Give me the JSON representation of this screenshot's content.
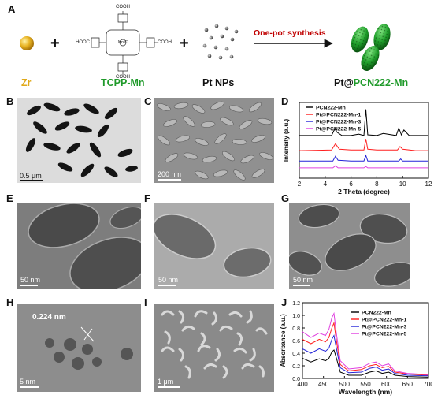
{
  "panel_labels": {
    "A": "A",
    "B": "B",
    "C": "C",
    "D": "D",
    "E": "E",
    "F": "F",
    "G": "G",
    "H": "H",
    "I": "I",
    "J": "J"
  },
  "scheme": {
    "zr_label": "Zr",
    "tcpp_label": "TCPP-Mn",
    "pt_label": "Pt NPs",
    "product_prefix": "Pt@",
    "product_suffix": "PCN222-Mn",
    "arrow_text": "One-pot synthesis",
    "plus": "+",
    "cooh": "COOH",
    "hooc": "HOOC",
    "mncl": "Mn Cl"
  },
  "scale_bars": {
    "B": "0.5 μm",
    "C": "200 nm",
    "E": "50 nm",
    "F": "50 nm",
    "G": "50 nm",
    "H": "5 nm",
    "I": "1 μm"
  },
  "hrtem": {
    "lattice_spacing": "0.224 nm"
  },
  "colors": {
    "zr": "#e0a91a",
    "green": "#1f9a2a",
    "arrow_red": "#c00000",
    "series": [
      "#000000",
      "#ff2020",
      "#2424d8",
      "#e040e0"
    ]
  },
  "chart_data": [
    {
      "type": "line",
      "panel": "D",
      "xlabel": "2 Theta (degree)",
      "ylabel": "Intensity (a.u.)",
      "xlim": [
        2,
        12
      ],
      "xticks": [
        2,
        4,
        6,
        8,
        10,
        12
      ],
      "legend_placement": "top-left",
      "series": [
        {
          "name": "PCN222-Mn",
          "color": "#000000",
          "x": [
            2,
            4.5,
            4.75,
            4.9,
            5.3,
            6.0,
            6.6,
            7.0,
            7.15,
            7.3,
            8.0,
            8.5,
            9.5,
            9.7,
            9.9,
            10.1,
            10.5,
            11,
            12
          ],
          "y": [
            0.62,
            0.62,
            0.72,
            0.67,
            0.62,
            0.62,
            0.64,
            0.62,
            1.0,
            0.63,
            0.62,
            0.65,
            0.62,
            0.73,
            0.63,
            0.7,
            0.62,
            0.62,
            0.62
          ]
        },
        {
          "name": "Pt@PCN222-Mn-1",
          "color": "#ff2020",
          "x": [
            2,
            4.5,
            4.8,
            5.1,
            6.0,
            7.0,
            7.15,
            7.3,
            8.0,
            9.6,
            9.8,
            10.0,
            11,
            12
          ],
          "y": [
            0.4,
            0.41,
            0.5,
            0.42,
            0.41,
            0.41,
            0.57,
            0.42,
            0.41,
            0.41,
            0.46,
            0.42,
            0.4,
            0.4
          ]
        },
        {
          "name": "Pt@PCN222-Mn-3",
          "color": "#2424d8",
          "x": [
            2,
            4.6,
            4.8,
            5.0,
            6.0,
            7.0,
            7.15,
            7.3,
            9.7,
            9.85,
            10.0,
            12
          ],
          "y": [
            0.25,
            0.25,
            0.32,
            0.26,
            0.25,
            0.25,
            0.33,
            0.25,
            0.25,
            0.28,
            0.25,
            0.25
          ]
        },
        {
          "name": "Pt@PCN222-Mn-5",
          "color": "#e040e0",
          "x": [
            2,
            4.6,
            4.8,
            5.0,
            7.0,
            7.15,
            7.3,
            12
          ],
          "y": [
            0.15,
            0.15,
            0.18,
            0.15,
            0.15,
            0.17,
            0.15,
            0.15
          ]
        }
      ]
    },
    {
      "type": "line",
      "panel": "J",
      "xlabel": "Wavelength (nm)",
      "ylabel": "Absorbance (a.u.)",
      "xlim": [
        400,
        700
      ],
      "ylim": [
        0,
        1.2
      ],
      "xticks": [
        400,
        450,
        500,
        550,
        600,
        650,
        700
      ],
      "yticks": [
        0.0,
        0.2,
        0.4,
        0.6,
        0.8,
        1.0,
        1.2
      ],
      "legend_placement": "top-right",
      "series": [
        {
          "name": "PCN222-Mn",
          "color": "#000000",
          "x": [
            400,
            420,
            440,
            455,
            463,
            470,
            475,
            480,
            490,
            510,
            540,
            560,
            575,
            590,
            605,
            620,
            650,
            700
          ],
          "y": [
            0.32,
            0.26,
            0.31,
            0.28,
            0.32,
            0.42,
            0.45,
            0.34,
            0.1,
            0.05,
            0.05,
            0.1,
            0.12,
            0.08,
            0.1,
            0.05,
            0.03,
            0.02
          ]
        },
        {
          "name": "Pt@PCN222-Mn-1",
          "color": "#ff2020",
          "x": [
            400,
            420,
            440,
            455,
            463,
            470,
            475,
            480,
            490,
            510,
            540,
            560,
            575,
            590,
            605,
            620,
            650,
            700
          ],
          "y": [
            0.62,
            0.55,
            0.62,
            0.58,
            0.65,
            0.8,
            0.88,
            0.63,
            0.22,
            0.12,
            0.14,
            0.2,
            0.22,
            0.17,
            0.19,
            0.1,
            0.07,
            0.05
          ]
        },
        {
          "name": "Pt@PCN222-Mn-3",
          "color": "#2424d8",
          "x": [
            400,
            420,
            440,
            455,
            463,
            470,
            475,
            480,
            490,
            510,
            540,
            560,
            575,
            590,
            605,
            620,
            650,
            700
          ],
          "y": [
            0.47,
            0.4,
            0.47,
            0.43,
            0.48,
            0.62,
            0.68,
            0.5,
            0.17,
            0.09,
            0.1,
            0.16,
            0.18,
            0.13,
            0.15,
            0.08,
            0.05,
            0.04
          ]
        },
        {
          "name": "Pt@PCN222-Mn-5",
          "color": "#e040e0",
          "x": [
            400,
            420,
            440,
            455,
            463,
            470,
            475,
            480,
            490,
            510,
            540,
            560,
            575,
            590,
            605,
            620,
            650,
            700
          ],
          "y": [
            0.74,
            0.65,
            0.72,
            0.68,
            0.78,
            0.96,
            1.03,
            0.75,
            0.28,
            0.15,
            0.17,
            0.24,
            0.26,
            0.2,
            0.23,
            0.12,
            0.08,
            0.06
          ]
        }
      ]
    }
  ]
}
